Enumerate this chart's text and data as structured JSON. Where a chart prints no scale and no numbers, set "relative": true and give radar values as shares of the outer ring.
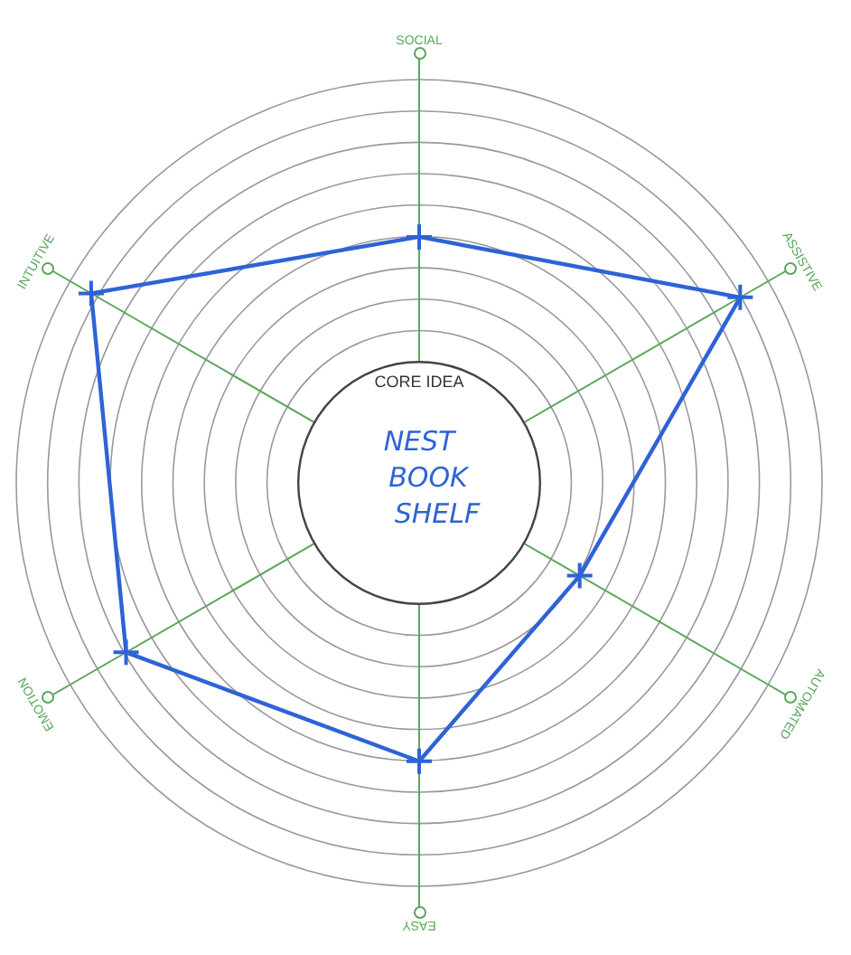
{
  "chart_data": {
    "type": "radar",
    "relative": true,
    "categories": [
      "SOCIAL",
      "ASSISTIVE",
      "AUTOMATED",
      "EASY",
      "EMOTION",
      "INTUITIVE"
    ],
    "series": [
      {
        "color": "#2e63d6",
        "values": [
          0.61,
          0.92,
          0.46,
          0.69,
          0.84,
          0.94
        ]
      }
    ],
    "marker": "cross",
    "grid": true,
    "legend": false,
    "annotations": [
      "CORE IDEA",
      "NEST BOOK SHELF"
    ]
  }
}
